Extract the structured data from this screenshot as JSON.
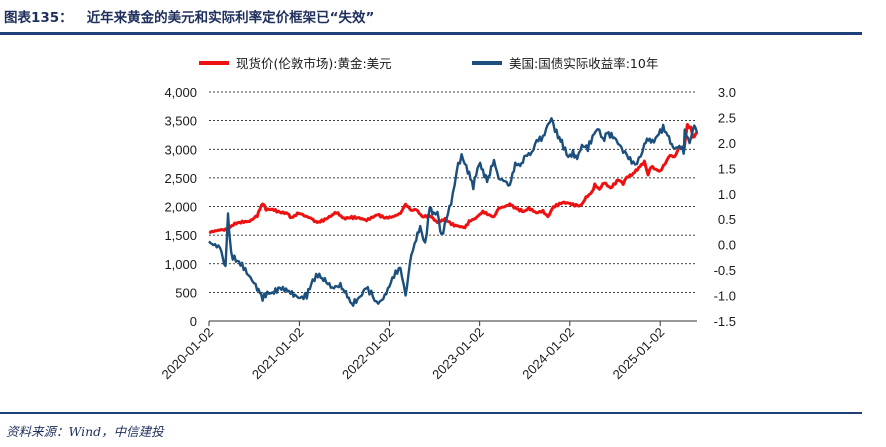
{
  "header": {
    "figure_number": "图表135：",
    "title": "近年来黄金的美元和实际利率定价框架已“失效”"
  },
  "footer": {
    "source": "资料来源：Wind，中信建投"
  },
  "chart_data": {
    "type": "line",
    "title": "",
    "xlabel": "",
    "ylabel_left": "",
    "ylabel_right": "",
    "x_ticks": [
      "2020-01-02",
      "2021-01-02",
      "2022-01-02",
      "2023-01-02",
      "2024-01-02",
      "2025-01-02"
    ],
    "x_range": [
      "2020-01-02",
      "2025-05-31"
    ],
    "y_left": {
      "range": [
        0,
        4000
      ],
      "ticks": [
        "0",
        "500",
        "1,000",
        "1,500",
        "2,000",
        "2,500",
        "3,000",
        "3,500",
        "4,000"
      ],
      "tick_values": [
        0,
        500,
        1000,
        1500,
        2000,
        2500,
        3000,
        3500,
        4000
      ]
    },
    "y_right": {
      "range": [
        -1.5,
        3.0
      ],
      "ticks": [
        "-1.5",
        "-1.0",
        "-0.5",
        "0.0",
        "0.5",
        "1.0",
        "1.5",
        "2.0",
        "2.5",
        "3.0"
      ],
      "tick_values": [
        -1.5,
        -1.0,
        -0.5,
        0.0,
        0.5,
        1.0,
        1.5,
        2.0,
        2.5,
        3.0
      ]
    },
    "grid": "horizontal-dashed",
    "legend_position": "top",
    "series": [
      {
        "name": "现货价(伦敦市场):黄金:美元",
        "axis": "left",
        "color": "#ee1111",
        "points": [
          [
            "2020-01-02",
            1550
          ],
          [
            "2020-02-15",
            1590
          ],
          [
            "2020-03-15",
            1600
          ],
          [
            "2020-04-15",
            1700
          ],
          [
            "2020-05-15",
            1730
          ],
          [
            "2020-06-15",
            1740
          ],
          [
            "2020-07-15",
            1840
          ],
          [
            "2020-08-06",
            2060
          ],
          [
            "2020-08-20",
            1950
          ],
          [
            "2020-09-15",
            1950
          ],
          [
            "2020-10-15",
            1900
          ],
          [
            "2020-11-15",
            1880
          ],
          [
            "2020-12-01",
            1800
          ],
          [
            "2020-12-31",
            1890
          ],
          [
            "2021-01-15",
            1850
          ],
          [
            "2021-02-15",
            1800
          ],
          [
            "2021-03-15",
            1720
          ],
          [
            "2021-04-15",
            1770
          ],
          [
            "2021-05-15",
            1850
          ],
          [
            "2021-06-01",
            1900
          ],
          [
            "2021-07-01",
            1790
          ],
          [
            "2021-08-01",
            1810
          ],
          [
            "2021-09-01",
            1800
          ],
          [
            "2021-10-01",
            1760
          ],
          [
            "2021-11-15",
            1860
          ],
          [
            "2021-12-15",
            1800
          ],
          [
            "2022-01-15",
            1820
          ],
          [
            "2022-02-15",
            1880
          ],
          [
            "2022-03-08",
            2040
          ],
          [
            "2022-04-01",
            1930
          ],
          [
            "2022-04-20",
            1950
          ],
          [
            "2022-05-15",
            1820
          ],
          [
            "2022-06-15",
            1840
          ],
          [
            "2022-07-15",
            1720
          ],
          [
            "2022-08-15",
            1780
          ],
          [
            "2022-09-15",
            1680
          ],
          [
            "2022-10-15",
            1650
          ],
          [
            "2022-11-03",
            1630
          ],
          [
            "2022-11-20",
            1740
          ],
          [
            "2022-12-15",
            1790
          ],
          [
            "2023-01-15",
            1910
          ],
          [
            "2023-02-15",
            1840
          ],
          [
            "2023-03-01",
            1820
          ],
          [
            "2023-03-20",
            1970
          ],
          [
            "2023-04-15",
            2000
          ],
          [
            "2023-05-04",
            2040
          ],
          [
            "2023-06-01",
            1960
          ],
          [
            "2023-06-30",
            1910
          ],
          [
            "2023-07-20",
            1970
          ],
          [
            "2023-08-20",
            1890
          ],
          [
            "2023-09-15",
            1920
          ],
          [
            "2023-10-05",
            1820
          ],
          [
            "2023-10-27",
            1990
          ],
          [
            "2023-12-04",
            2070
          ],
          [
            "2023-12-28",
            2060
          ],
          [
            "2024-01-15",
            2030
          ],
          [
            "2024-02-15",
            2010
          ],
          [
            "2024-03-08",
            2160
          ],
          [
            "2024-04-01",
            2250
          ],
          [
            "2024-04-12",
            2380
          ],
          [
            "2024-05-01",
            2300
          ],
          [
            "2024-05-20",
            2420
          ],
          [
            "2024-06-15",
            2320
          ],
          [
            "2024-07-17",
            2470
          ],
          [
            "2024-08-05",
            2400
          ],
          [
            "2024-08-20",
            2510
          ],
          [
            "2024-09-15",
            2570
          ],
          [
            "2024-10-01",
            2650
          ],
          [
            "2024-10-30",
            2780
          ],
          [
            "2024-11-14",
            2560
          ],
          [
            "2024-11-25",
            2700
          ],
          [
            "2024-12-15",
            2650
          ],
          [
            "2024-12-31",
            2620
          ],
          [
            "2025-01-15",
            2700
          ],
          [
            "2025-02-11",
            2900
          ],
          [
            "2025-03-01",
            2860
          ],
          [
            "2025-03-20",
            3040
          ],
          [
            "2025-04-08",
            2990
          ],
          [
            "2025-04-22",
            3420
          ],
          [
            "2025-05-06",
            3370
          ],
          [
            "2025-05-15",
            3190
          ],
          [
            "2025-05-31",
            3300
          ]
        ]
      },
      {
        "name": "美国:国债实际收益率:10年",
        "axis": "right",
        "color": "#1c4f7c",
        "points": [
          [
            "2020-01-02",
            0.05
          ],
          [
            "2020-01-20",
            0.0
          ],
          [
            "2020-02-15",
            -0.05
          ],
          [
            "2020-03-09",
            -0.45
          ],
          [
            "2020-03-19",
            0.6
          ],
          [
            "2020-03-24",
            0.2
          ],
          [
            "2020-04-01",
            -0.2
          ],
          [
            "2020-04-20",
            -0.3
          ],
          [
            "2020-05-15",
            -0.4
          ],
          [
            "2020-06-10",
            -0.6
          ],
          [
            "2020-06-25",
            -0.7
          ],
          [
            "2020-07-15",
            -0.85
          ],
          [
            "2020-08-06",
            -1.05
          ],
          [
            "2020-08-25",
            -0.95
          ],
          [
            "2020-09-15",
            -0.95
          ],
          [
            "2020-10-15",
            -0.85
          ],
          [
            "2020-11-15",
            -0.9
          ],
          [
            "2020-12-15",
            -1.0
          ],
          [
            "2021-01-05",
            -1.05
          ],
          [
            "2021-02-01",
            -1.0
          ],
          [
            "2021-02-25",
            -0.7
          ],
          [
            "2021-03-18",
            -0.6
          ],
          [
            "2021-04-15",
            -0.7
          ],
          [
            "2021-05-15",
            -0.85
          ],
          [
            "2021-06-17",
            -0.8
          ],
          [
            "2021-07-15",
            -1.0
          ],
          [
            "2021-08-02",
            -1.18
          ],
          [
            "2021-09-01",
            -1.05
          ],
          [
            "2021-09-29",
            -0.85
          ],
          [
            "2021-10-20",
            -0.95
          ],
          [
            "2021-11-10",
            -1.15
          ],
          [
            "2021-12-01",
            -1.1
          ],
          [
            "2021-12-20",
            -0.95
          ],
          [
            "2022-01-20",
            -0.6
          ],
          [
            "2022-02-15",
            -0.45
          ],
          [
            "2022-03-08",
            -1.0
          ],
          [
            "2022-03-31",
            -0.2
          ],
          [
            "2022-04-20",
            0.1
          ],
          [
            "2022-05-06",
            0.35
          ],
          [
            "2022-05-26",
            0.0
          ],
          [
            "2022-06-14",
            0.75
          ],
          [
            "2022-06-30",
            0.6
          ],
          [
            "2022-07-15",
            0.65
          ],
          [
            "2022-08-01",
            0.15
          ],
          [
            "2022-08-20",
            0.5
          ],
          [
            "2022-09-15",
            0.95
          ],
          [
            "2022-09-30",
            1.45
          ],
          [
            "2022-10-21",
            1.75
          ],
          [
            "2022-11-15",
            1.45
          ],
          [
            "2022-12-07",
            1.15
          ],
          [
            "2022-12-30",
            1.6
          ],
          [
            "2023-01-15",
            1.45
          ],
          [
            "2023-02-01",
            1.25
          ],
          [
            "2023-03-01",
            1.65
          ],
          [
            "2023-03-20",
            1.3
          ],
          [
            "2023-04-15",
            1.25
          ],
          [
            "2023-05-04",
            1.15
          ],
          [
            "2023-05-26",
            1.6
          ],
          [
            "2023-06-15",
            1.55
          ],
          [
            "2023-07-07",
            1.75
          ],
          [
            "2023-08-01",
            1.8
          ],
          [
            "2023-08-21",
            2.05
          ],
          [
            "2023-09-15",
            2.1
          ],
          [
            "2023-10-05",
            2.35
          ],
          [
            "2023-10-20",
            2.48
          ],
          [
            "2023-11-03",
            2.25
          ],
          [
            "2023-11-15",
            2.15
          ],
          [
            "2023-12-01",
            2.0
          ],
          [
            "2023-12-27",
            1.72
          ],
          [
            "2024-01-15",
            1.8
          ],
          [
            "2024-02-01",
            1.7
          ],
          [
            "2024-02-20",
            1.95
          ],
          [
            "2024-03-15",
            1.9
          ],
          [
            "2024-04-16",
            2.25
          ],
          [
            "2024-05-01",
            2.25
          ],
          [
            "2024-05-15",
            2.05
          ],
          [
            "2024-06-01",
            2.2
          ],
          [
            "2024-06-30",
            2.1
          ],
          [
            "2024-07-15",
            2.0
          ],
          [
            "2024-08-05",
            1.85
          ],
          [
            "2024-08-20",
            1.75
          ],
          [
            "2024-09-15",
            1.6
          ],
          [
            "2024-09-30",
            1.6
          ],
          [
            "2024-10-15",
            1.75
          ],
          [
            "2024-10-30",
            1.95
          ],
          [
            "2024-11-15",
            2.1
          ],
          [
            "2024-12-01",
            2.0
          ],
          [
            "2024-12-15",
            2.1
          ],
          [
            "2025-01-14",
            2.3
          ],
          [
            "2025-02-01",
            2.15
          ],
          [
            "2025-03-01",
            1.85
          ],
          [
            "2025-03-15",
            1.95
          ],
          [
            "2025-04-07",
            1.85
          ],
          [
            "2025-04-11",
            2.25
          ],
          [
            "2025-05-01",
            2.0
          ],
          [
            "2025-05-20",
            2.35
          ],
          [
            "2025-05-31",
            2.2
          ]
        ]
      }
    ]
  }
}
